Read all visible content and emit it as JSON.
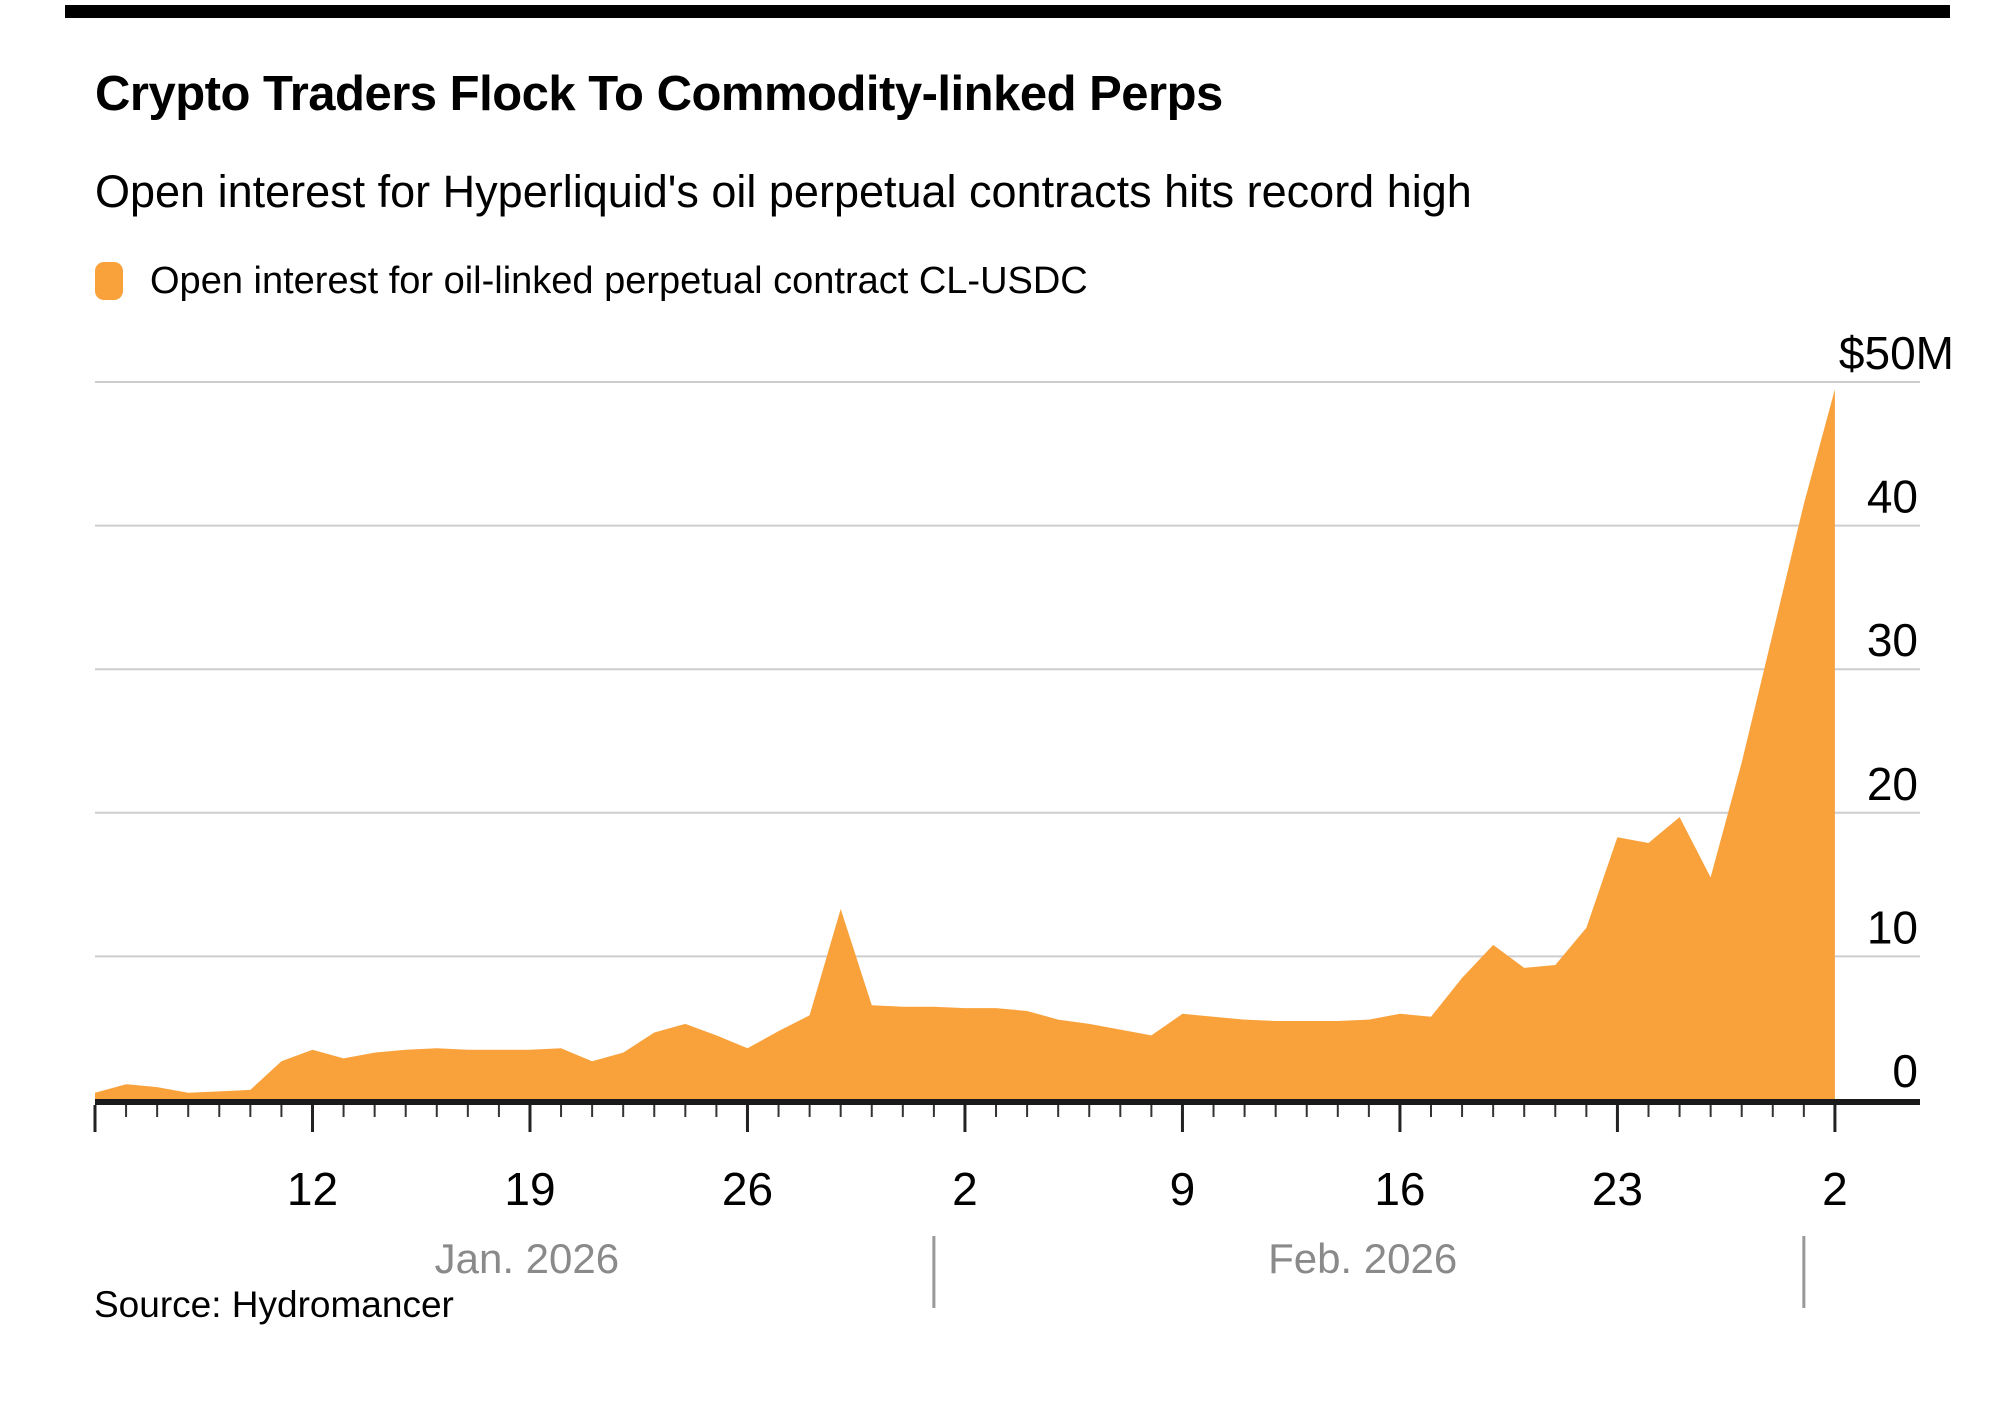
{
  "page": {
    "background": "#ffffff",
    "top_rule_color": "#000000"
  },
  "header": {
    "title": "Crypto Traders Flock To Commodity-linked Perps",
    "subtitle": "Open interest for Hyperliquid's oil perpetual contracts hits record high"
  },
  "legend": {
    "swatch_color": "#F9A23C",
    "label": "Open interest for oil-linked perpetual contract CL-USDC"
  },
  "source_line": "Source: Hydromancer",
  "chart_data": {
    "type": "area",
    "series_name": "Open interest for oil-linked perpetual contract CL-USDC",
    "unit": "USD millions",
    "fill_color": "#F9A23C",
    "grid": "horizontal",
    "gridline_color": "#cdcdcd",
    "axis_color": "#1a1a1a",
    "tick_color": "#333333",
    "month_label_color": "#8a8a8a",
    "legend_position": "top-left",
    "ylim": [
      0,
      50
    ],
    "yticks": [
      {
        "value": 50,
        "label": "$50M"
      },
      {
        "value": 40,
        "label": "40"
      },
      {
        "value": 30,
        "label": "30"
      },
      {
        "value": 20,
        "label": "20"
      },
      {
        "value": 10,
        "label": "10"
      },
      {
        "value": 0,
        "label": "0"
      }
    ],
    "x_axis": {
      "tick_interval": "1 day",
      "major_tick_interval": "7 days",
      "major_tick_labels": [
        {
          "day_index": 7,
          "label": "12",
          "date": "2026-01-12"
        },
        {
          "day_index": 14,
          "label": "19",
          "date": "2026-01-19"
        },
        {
          "day_index": 21,
          "label": "26",
          "date": "2026-01-26"
        },
        {
          "day_index": 28,
          "label": "2",
          "date": "2026-02-02"
        },
        {
          "day_index": 35,
          "label": "9",
          "date": "2026-02-09"
        },
        {
          "day_index": 42,
          "label": "16",
          "date": "2026-02-16"
        },
        {
          "day_index": 49,
          "label": "23",
          "date": "2026-02-23"
        },
        {
          "day_index": 56,
          "label": "2",
          "date": "2026-03-02"
        }
      ],
      "months": [
        {
          "label": "Jan. 2026",
          "center_day": 13.9
        },
        {
          "label": "Feb. 2026",
          "center_day": 40.8
        }
      ],
      "month_separator_days": [
        27,
        55
      ]
    },
    "dates": [
      "2026-01-05",
      "2026-01-06",
      "2026-01-07",
      "2026-01-08",
      "2026-01-09",
      "2026-01-10",
      "2026-01-11",
      "2026-01-12",
      "2026-01-13",
      "2026-01-14",
      "2026-01-15",
      "2026-01-16",
      "2026-01-17",
      "2026-01-18",
      "2026-01-19",
      "2026-01-20",
      "2026-01-21",
      "2026-01-22",
      "2026-01-23",
      "2026-01-24",
      "2026-01-25",
      "2026-01-26",
      "2026-01-27",
      "2026-01-28",
      "2026-01-29",
      "2026-01-30",
      "2026-01-31",
      "2026-02-01",
      "2026-02-02",
      "2026-02-03",
      "2026-02-04",
      "2026-02-05",
      "2026-02-06",
      "2026-02-07",
      "2026-02-08",
      "2026-02-09",
      "2026-02-10",
      "2026-02-11",
      "2026-02-12",
      "2026-02-13",
      "2026-02-14",
      "2026-02-15",
      "2026-02-16",
      "2026-02-17",
      "2026-02-18",
      "2026-02-19",
      "2026-02-20",
      "2026-02-21",
      "2026-02-22",
      "2026-02-23",
      "2026-02-24",
      "2026-02-25",
      "2026-02-26",
      "2026-02-27",
      "2026-02-28",
      "2026-03-01",
      "2026-03-02"
    ],
    "values": [
      0.5,
      1.1,
      0.9,
      0.5,
      0.6,
      0.7,
      2.7,
      3.5,
      2.9,
      3.3,
      3.5,
      3.6,
      3.5,
      3.5,
      3.5,
      3.6,
      2.7,
      3.3,
      4.7,
      5.3,
      4.5,
      3.6,
      4.8,
      5.9,
      13.3,
      6.6,
      6.5,
      6.5,
      6.4,
      6.4,
      6.2,
      5.6,
      5.3,
      4.9,
      4.5,
      6.0,
      5.8,
      5.6,
      5.5,
      5.5,
      5.5,
      5.6,
      6.0,
      5.8,
      8.5,
      10.8,
      9.2,
      9.4,
      12.0,
      18.3,
      17.9,
      19.7,
      15.5,
      23.5,
      32.5,
      41.5,
      49.5
    ]
  }
}
